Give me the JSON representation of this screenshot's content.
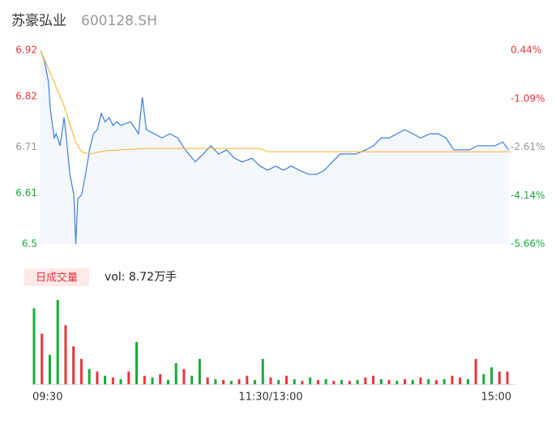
{
  "header": {
    "name": "苏豪弘业",
    "code": "600128.SH"
  },
  "chart_data": [
    {
      "type": "line",
      "xlim": [
        0,
        240
      ],
      "ylim": [
        6.5,
        6.92
      ],
      "yticks": [
        6.5,
        6.61,
        6.71,
        6.82,
        6.92
      ],
      "y2lim": [
        -5.66,
        0.44
      ],
      "y2ticks": [
        {
          "value": -5.66,
          "label": "-5.66%"
        },
        {
          "value": -4.14,
          "label": "-4.14%"
        },
        {
          "value": -2.61,
          "label": "-2.61%"
        },
        {
          "value": -1.09,
          "label": "-1.09%"
        },
        {
          "value": 0.44,
          "label": "0.44%"
        }
      ],
      "grid": false,
      "up_color": "#e8363b",
      "down_color": "#1aa93a",
      "flat_color": "#999999",
      "series": [
        {
          "name": "price",
          "color": "#3b7ddd",
          "x": [
            0,
            2,
            4,
            5,
            7,
            8,
            10,
            12,
            13,
            15,
            17,
            18,
            19,
            21,
            23,
            25,
            27,
            29,
            31,
            33,
            35,
            37,
            39,
            41,
            46,
            50,
            52,
            54,
            58,
            62,
            66,
            70,
            74,
            79,
            83,
            87,
            91,
            95,
            99,
            103,
            108,
            112,
            116,
            120,
            124,
            128,
            132,
            137,
            141,
            145,
            149,
            153,
            157,
            161,
            166,
            170,
            174,
            178,
            182,
            186,
            190,
            194,
            199,
            203,
            207,
            211,
            215,
            219,
            223,
            228,
            232,
            236,
            239
          ],
          "values": [
            6.92,
            6.897,
            6.853,
            6.792,
            6.73,
            6.739,
            6.713,
            6.774,
            6.739,
            6.651,
            6.607,
            6.5,
            6.598,
            6.607,
            6.651,
            6.704,
            6.739,
            6.748,
            6.783,
            6.765,
            6.774,
            6.757,
            6.765,
            6.757,
            6.765,
            6.739,
            6.818,
            6.748,
            6.739,
            6.73,
            6.739,
            6.73,
            6.704,
            6.678,
            6.695,
            6.713,
            6.695,
            6.704,
            6.686,
            6.678,
            6.686,
            6.669,
            6.66,
            6.669,
            6.66,
            6.669,
            6.66,
            6.651,
            6.651,
            6.66,
            6.678,
            6.695,
            6.695,
            6.695,
            6.704,
            6.713,
            6.73,
            6.73,
            6.739,
            6.748,
            6.739,
            6.73,
            6.739,
            6.739,
            6.73,
            6.704,
            6.704,
            6.704,
            6.713,
            6.713,
            6.713,
            6.721,
            6.704
          ]
        },
        {
          "name": "avg",
          "color": "#f5b942",
          "x": [
            0,
            2,
            5,
            8,
            12,
            15,
            18,
            21,
            25,
            33,
            54,
            112,
            116,
            240
          ],
          "values": [
            6.92,
            6.9,
            6.87,
            6.84,
            6.8,
            6.76,
            6.72,
            6.7,
            6.695,
            6.702,
            6.707,
            6.707,
            6.7,
            6.7
          ]
        }
      ]
    },
    {
      "type": "bar",
      "legend": "日成交量",
      "label": "vol: 8.72万手",
      "xlim": [
        0,
        240
      ],
      "ylim": [
        0,
        100
      ],
      "xticks": [
        {
          "value": 0,
          "label": "09:30"
        },
        {
          "value": 120,
          "label": "11:30/13:00"
        },
        {
          "value": 240,
          "label": "15:00"
        }
      ],
      "up_color": "#e8363b",
      "down_color": "#1aa93a",
      "x": [
        0,
        4,
        8,
        12,
        16,
        20,
        24,
        28,
        32,
        36,
        40,
        44,
        48,
        52,
        56,
        60,
        64,
        68,
        72,
        76,
        80,
        84,
        88,
        92,
        96,
        100,
        104,
        108,
        112,
        116,
        120,
        124,
        128,
        132,
        136,
        140,
        144,
        148,
        152,
        156,
        160,
        164,
        168,
        172,
        176,
        180,
        184,
        188,
        192,
        196,
        200,
        204,
        208,
        212,
        216,
        220,
        224,
        228,
        232,
        236,
        240
      ],
      "values": [
        90,
        60,
        35,
        100,
        70,
        45,
        30,
        18,
        15,
        10,
        8,
        6,
        15,
        50,
        10,
        8,
        12,
        5,
        25,
        18,
        10,
        30,
        8,
        6,
        5,
        4,
        6,
        10,
        5,
        30,
        8,
        5,
        10,
        6,
        4,
        8,
        5,
        6,
        4,
        5,
        4,
        5,
        8,
        10,
        6,
        5,
        4,
        6,
        5,
        8,
        6,
        5,
        6,
        10,
        8,
        6,
        30,
        12,
        20,
        15,
        15
      ],
      "directions": [
        "down",
        "up",
        "down",
        "down",
        "up",
        "up",
        "up",
        "down",
        "up",
        "down",
        "up",
        "down",
        "up",
        "down",
        "up",
        "down",
        "up",
        "down",
        "down",
        "up",
        "down",
        "down",
        "up",
        "down",
        "up",
        "down",
        "up",
        "up",
        "down",
        "down",
        "up",
        "down",
        "up",
        "down",
        "up",
        "down",
        "up",
        "down",
        "up",
        "down",
        "up",
        "down",
        "up",
        "up",
        "down",
        "up",
        "down",
        "up",
        "down",
        "up",
        "down",
        "up",
        "down",
        "up",
        "up",
        "down",
        "up",
        "down",
        "down",
        "up",
        "up"
      ]
    }
  ]
}
